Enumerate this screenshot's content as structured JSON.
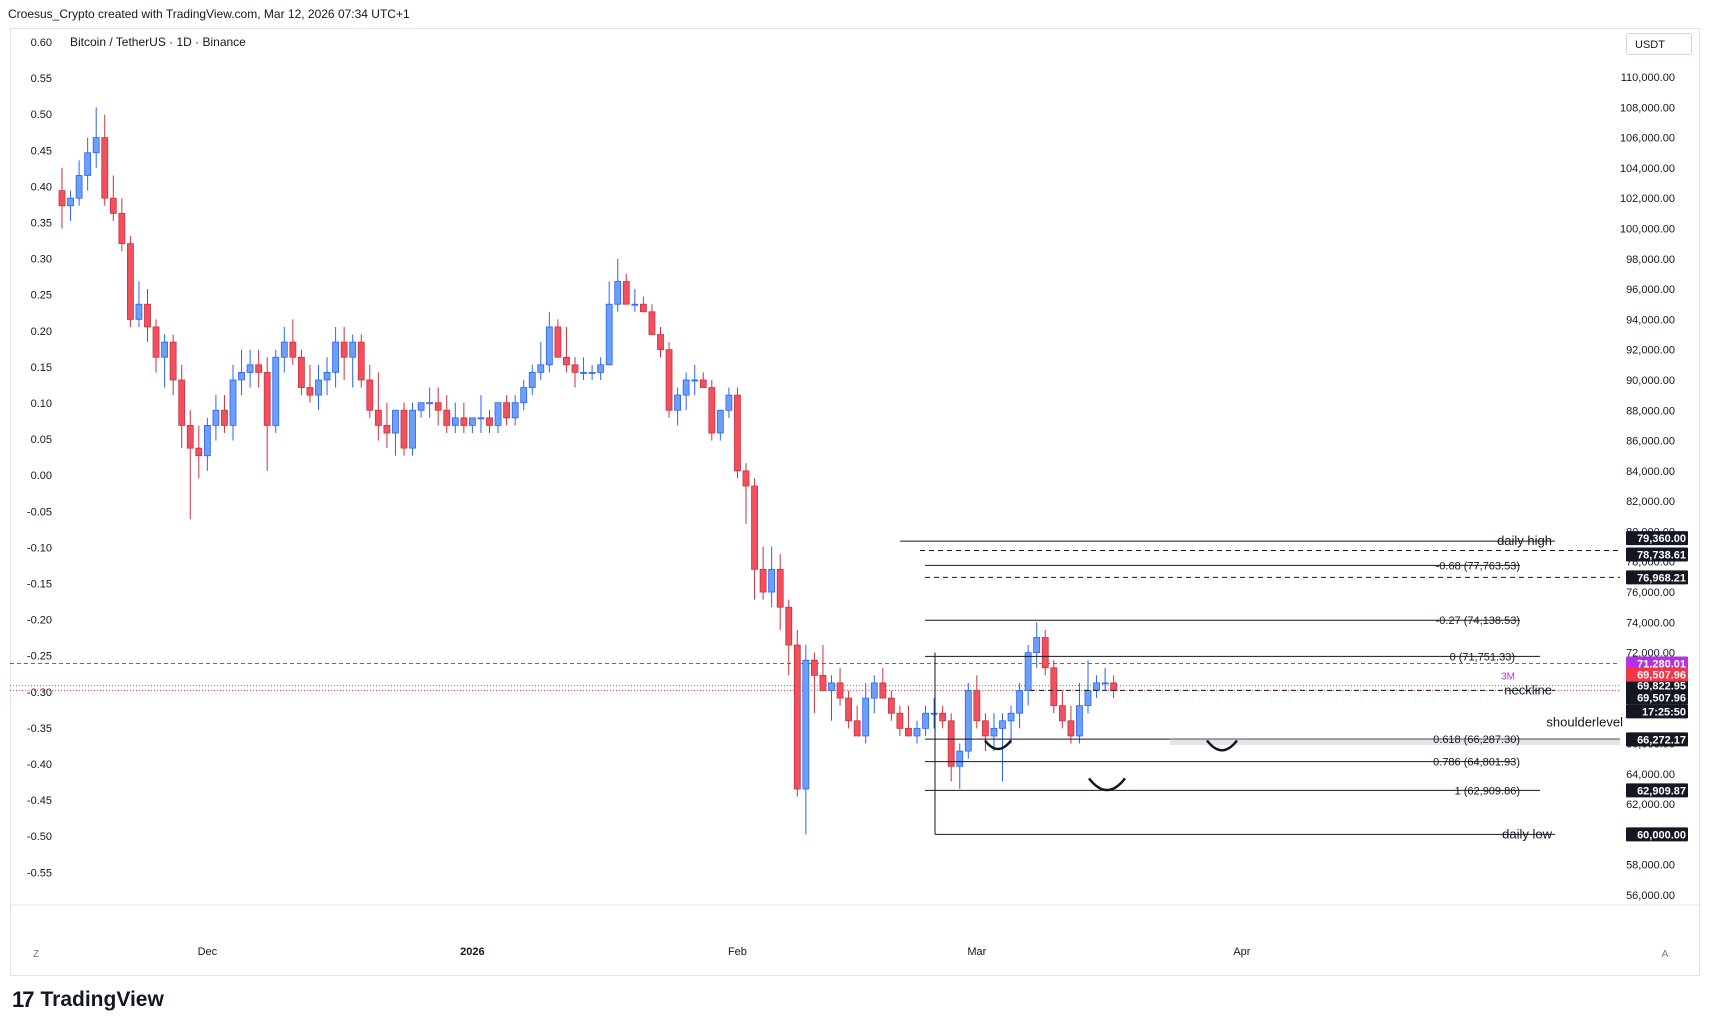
{
  "header": {
    "attribution": "Croesus_Crypto created with TradingView.com, Mar 12, 2026 07:34 UTC+1"
  },
  "symbol": {
    "title": "Bitcoin / TetherUS · 1D · Binance"
  },
  "currency_button": "USDT",
  "left_corner_label": "Z",
  "right_corner_label": "A",
  "brand": {
    "name": "TradingView"
  },
  "colors": {
    "up": "#6e9ff7",
    "down": "#f2505f",
    "up_border": "#2962ff",
    "down_border": "#c8323e",
    "accent_purple": "#b431e6"
  },
  "chart_data": {
    "type": "candlestick",
    "title": "Bitcoin / TetherUS · 1D · Binance",
    "ylim": [
      55000,
      112000
    ],
    "y_ticks": [
      "56,000.00",
      "58,000.00",
      "60,000.00",
      "62,000.00",
      "64,000.00",
      "66,000.00",
      "68,000.00",
      "70,000.00",
      "72,000.00",
      "74,000.00",
      "76,000.00",
      "78,000.00",
      "80,000.00",
      "82,000.00",
      "84,000.00",
      "86,000.00",
      "88,000.00",
      "90,000.00",
      "92,000.00",
      "94,000.00",
      "96,000.00",
      "98,000.00",
      "100,000.00",
      "102,000.00",
      "104,000.00",
      "106,000.00",
      "108,000.00",
      "110,000.00"
    ],
    "left_ticks": [
      "0.60",
      "0.55",
      "0.50",
      "0.45",
      "0.40",
      "0.35",
      "0.30",
      "0.25",
      "0.20",
      "0.15",
      "0.10",
      "0.05",
      "0.00",
      "-0.05",
      "-0.10",
      "-0.15",
      "-0.20",
      "-0.25",
      "-0.30",
      "-0.35",
      "-0.40",
      "-0.45",
      "-0.50",
      "-0.55"
    ],
    "x_labels": [
      {
        "label": "Dec",
        "day": 18
      },
      {
        "label": "2026",
        "day": 49
      },
      {
        "label": "Feb",
        "day": 80
      },
      {
        "label": "Mar",
        "day": 108
      },
      {
        "label": "Apr",
        "day": 139
      }
    ],
    "candles": [
      [
        1,
        102500,
        104000,
        100000,
        101500
      ],
      [
        2,
        101500,
        102500,
        100500,
        102000
      ],
      [
        3,
        102000,
        104500,
        101500,
        103500
      ],
      [
        4,
        103500,
        106000,
        102500,
        105000
      ],
      [
        5,
        105000,
        108000,
        104000,
        106000
      ],
      [
        6,
        106000,
        107500,
        101500,
        102000
      ],
      [
        7,
        102000,
        103500,
        100500,
        101000
      ],
      [
        8,
        101000,
        102000,
        98500,
        99000
      ],
      [
        9,
        99000,
        99500,
        93500,
        94000
      ],
      [
        10,
        94000,
        96500,
        93500,
        95000
      ],
      [
        11,
        95000,
        96000,
        92500,
        93500
      ],
      [
        12,
        93500,
        94000,
        90500,
        91500
      ],
      [
        13,
        91500,
        93000,
        89500,
        92500
      ],
      [
        14,
        92500,
        93000,
        89000,
        90000
      ],
      [
        15,
        90000,
        91000,
        85500,
        87000
      ],
      [
        16,
        87000,
        88000,
        80800,
        85500
      ],
      [
        17,
        85500,
        87000,
        83500,
        85000
      ],
      [
        18,
        85000,
        87500,
        84000,
        87000
      ],
      [
        19,
        87000,
        89000,
        86000,
        88000
      ],
      [
        20,
        88000,
        89000,
        86500,
        87000
      ],
      [
        21,
        87000,
        91000,
        86000,
        90000
      ],
      [
        22,
        90000,
        92000,
        89000,
        90500
      ],
      [
        23,
        90500,
        92000,
        89500,
        91000
      ],
      [
        24,
        91000,
        92000,
        89500,
        90500
      ],
      [
        25,
        90500,
        91500,
        84000,
        87000
      ],
      [
        26,
        87000,
        92000,
        86500,
        91500
      ],
      [
        27,
        91500,
        93500,
        90500,
        92500
      ],
      [
        28,
        92500,
        94000,
        91000,
        91500
      ],
      [
        29,
        91500,
        92000,
        89000,
        89500
      ],
      [
        30,
        89500,
        91000,
        88500,
        89000
      ],
      [
        31,
        89000,
        91000,
        88000,
        90000
      ],
      [
        32,
        90000,
        91500,
        89000,
        90500
      ],
      [
        33,
        90500,
        93500,
        89500,
        92500
      ],
      [
        34,
        92500,
        93500,
        90000,
        91500
      ],
      [
        35,
        91500,
        93000,
        89500,
        92500
      ],
      [
        36,
        92500,
        93000,
        89500,
        90000
      ],
      [
        37,
        90000,
        91000,
        87500,
        88000
      ],
      [
        38,
        88000,
        90500,
        86000,
        87000
      ],
      [
        39,
        87000,
        88500,
        85500,
        86500
      ],
      [
        40,
        86500,
        88000,
        85000,
        88000
      ],
      [
        41,
        88000,
        88500,
        85000,
        85500
      ],
      [
        42,
        85500,
        88500,
        85000,
        88000
      ],
      [
        43,
        88000,
        88500,
        87500,
        88500
      ],
      [
        44,
        88500,
        89500,
        87500,
        88500
      ],
      [
        45,
        88500,
        89500,
        87000,
        88000
      ],
      [
        46,
        88000,
        89000,
        86500,
        87000
      ],
      [
        47,
        87000,
        88500,
        86500,
        87500
      ],
      [
        48,
        87500,
        88500,
        86500,
        87000
      ],
      [
        49,
        87000,
        87500,
        86500,
        87500
      ],
      [
        50,
        87500,
        89000,
        86500,
        87500
      ],
      [
        51,
        87500,
        88000,
        86500,
        87000
      ],
      [
        52,
        87000,
        88500,
        86500,
        88500
      ],
      [
        53,
        88500,
        89000,
        87000,
        87500
      ],
      [
        54,
        87500,
        89000,
        87000,
        88500
      ],
      [
        55,
        88500,
        90000,
        88000,
        89500
      ],
      [
        56,
        89500,
        91000,
        89000,
        90500
      ],
      [
        57,
        90500,
        92500,
        90000,
        91000
      ],
      [
        58,
        91000,
        94500,
        90500,
        93500
      ],
      [
        59,
        93500,
        94000,
        91500,
        91500
      ],
      [
        60,
        91500,
        93500,
        90500,
        91000
      ],
      [
        61,
        91000,
        91500,
        89500,
        90500
      ],
      [
        62,
        90500,
        91500,
        90000,
        90500
      ],
      [
        63,
        90500,
        91000,
        90000,
        90500
      ],
      [
        64,
        90500,
        91500,
        90000,
        91000
      ],
      [
        65,
        91000,
        96500,
        91000,
        95000
      ],
      [
        66,
        95000,
        98000,
        94500,
        96500
      ],
      [
        67,
        96500,
        97000,
        95000,
        95000
      ],
      [
        68,
        95000,
        96000,
        94500,
        95000
      ],
      [
        69,
        95000,
        95500,
        94500,
        94500
      ],
      [
        70,
        94500,
        95000,
        93000,
        93000
      ],
      [
        71,
        93000,
        93500,
        91500,
        92000
      ],
      [
        72,
        92000,
        92500,
        87500,
        88000
      ],
      [
        73,
        88000,
        89500,
        87000,
        89000
      ],
      [
        74,
        89000,
        90500,
        88000,
        90000
      ],
      [
        75,
        90000,
        91000,
        89000,
        90000
      ],
      [
        76,
        90000,
        90500,
        89500,
        89500
      ],
      [
        77,
        89500,
        90000,
        86000,
        86500
      ],
      [
        78,
        86500,
        88000,
        86000,
        88000
      ],
      [
        79,
        88000,
        89500,
        87500,
        89000
      ],
      [
        80,
        89000,
        89500,
        83500,
        84000
      ],
      [
        81,
        84000,
        84500,
        80500,
        83000
      ],
      [
        82,
        83000,
        83500,
        75500,
        77500
      ],
      [
        83,
        77500,
        79000,
        75500,
        76000
      ],
      [
        84,
        76000,
        79000,
        75000,
        77500
      ],
      [
        85,
        77500,
        78500,
        73500,
        75000
      ],
      [
        86,
        75000,
        75500,
        70500,
        72500
      ],
      [
        87,
        72500,
        73500,
        62500,
        63000
      ],
      [
        88,
        63000,
        72500,
        60000,
        71500
      ],
      [
        89,
        71500,
        72000,
        68000,
        70500
      ],
      [
        90,
        70500,
        72500,
        69500,
        69500
      ],
      [
        91,
        69500,
        70500,
        67500,
        70000
      ],
      [
        92,
        70000,
        71000,
        68500,
        69000
      ],
      [
        93,
        69000,
        69500,
        67000,
        67500
      ],
      [
        94,
        67500,
        68500,
        66500,
        66500
      ],
      [
        95,
        66500,
        70000,
        66000,
        69000
      ],
      [
        96,
        69000,
        70500,
        68000,
        70000
      ],
      [
        97,
        70000,
        71000,
        69000,
        69000
      ],
      [
        98,
        69000,
        69500,
        67500,
        68000
      ],
      [
        99,
        68000,
        68500,
        66500,
        67000
      ],
      [
        100,
        67000,
        68500,
        66500,
        66500
      ],
      [
        101,
        66500,
        67500,
        66000,
        67000
      ],
      [
        102,
        67000,
        68500,
        66500,
        68000
      ],
      [
        103,
        68000,
        69000,
        67000,
        68000
      ],
      [
        104,
        68000,
        68500,
        67000,
        67500
      ],
      [
        105,
        67500,
        68000,
        63500,
        64500
      ],
      [
        106,
        64500,
        66000,
        63000,
        65500
      ],
      [
        107,
        65500,
        70000,
        65000,
        69500
      ],
      [
        108,
        69500,
        70500,
        67000,
        67500
      ],
      [
        109,
        67500,
        68000,
        65500,
        66500
      ],
      [
        110,
        66500,
        68000,
        65500,
        67000
      ],
      [
        111,
        67000,
        68000,
        63500,
        67500
      ],
      [
        112,
        67500,
        68500,
        66000,
        68000
      ],
      [
        113,
        68000,
        70000,
        67000,
        69500
      ],
      [
        114,
        69500,
        72500,
        68500,
        72000
      ],
      [
        115,
        72000,
        74000,
        71000,
        73000
      ],
      [
        116,
        73000,
        73500,
        70500,
        71000
      ],
      [
        117,
        71000,
        71500,
        68000,
        68500
      ],
      [
        118,
        68500,
        69500,
        67000,
        67500
      ],
      [
        119,
        67500,
        68500,
        66000,
        66500
      ],
      [
        120,
        66500,
        70000,
        66000,
        68500
      ],
      [
        121,
        68500,
        71500,
        68000,
        69500
      ],
      [
        122,
        69500,
        70500,
        69000,
        70000
      ],
      [
        123,
        70000,
        71000,
        69500,
        70000
      ],
      [
        124,
        70000,
        70500,
        69000,
        69500
      ]
    ],
    "levels": {
      "daily_high": {
        "label": "daily high",
        "price": 79360
      },
      "line_78738": {
        "price": 78738.61
      },
      "fib_neg068": {
        "label": "-0.68 (77,763.53)",
        "price": 77763.53
      },
      "line_76968": {
        "price": 76968.21
      },
      "fib_neg027": {
        "label": "-0.27 (74,138.53)",
        "price": 74138.53
      },
      "fib_0": {
        "label": "0 (71,751.33)",
        "price": 71751.33
      },
      "neckline": {
        "label": "neckline",
        "price": 69507.96
      },
      "shoulder": {
        "label": "shoulderlevel",
        "price": 66272.17
      },
      "fib_0618": {
        "label": "0.618 (66,287.30)",
        "price": 66287.3
      },
      "fib_0786": {
        "label": "0.786 (64,801.93)",
        "price": 64801.93
      },
      "fib_1": {
        "label": "1 (62,909.86)",
        "price": 62909.86
      },
      "daily_low": {
        "label": "daily low",
        "price": 60000
      }
    },
    "price_badges": [
      {
        "text": "79,360.00",
        "price": 79360,
        "color": "#131722"
      },
      {
        "text": "78,738.61",
        "price": 78738.61,
        "color": "#131722"
      },
      {
        "text": "76,968.21",
        "price": 76968.21,
        "color": "#131722"
      },
      {
        "text": "71,280.01",
        "price": 71280.01,
        "color": "#b431e6"
      },
      {
        "text": "69,822.95",
        "price": 69822.95,
        "color": "#131722"
      },
      {
        "text": "69,507.96",
        "price": 69507.96,
        "color": "#f23645"
      },
      {
        "text": "69,507.96",
        "price": 69507.96,
        "color": "#131722"
      },
      {
        "text": "17:25:50",
        "price": 69507.96,
        "color": "#131722"
      },
      {
        "text": "66,272.17",
        "price": 66272.17,
        "color": "#131722"
      },
      {
        "text": "62,909.87",
        "price": 62909.87,
        "color": "#131722"
      },
      {
        "text": "60,000.00",
        "price": 60000,
        "color": "#131722"
      }
    ],
    "marker_label": "3M"
  }
}
